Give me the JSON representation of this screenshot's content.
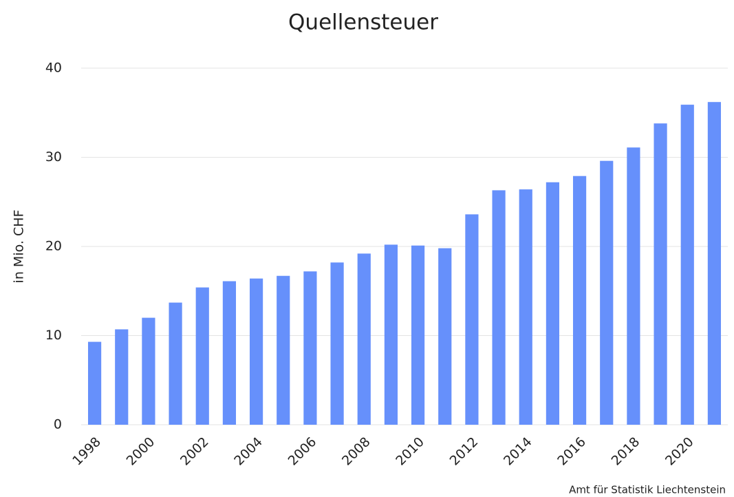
{
  "chart_data": {
    "type": "bar",
    "title": "Quellensteuer",
    "y_label": "in Mio. CHF",
    "source": "Amt für Statistik Liechtenstein",
    "categories": [
      "1998",
      null,
      "2000",
      null,
      "2002",
      null,
      "2004",
      null,
      "2006",
      null,
      "2008",
      null,
      "2010",
      null,
      "2012",
      null,
      "2014",
      null,
      "2016",
      null,
      "2018",
      null,
      "2020",
      null
    ],
    "values": [
      9.3,
      10.7,
      12.0,
      13.7,
      15.4,
      16.1,
      16.4,
      16.7,
      17.2,
      18.2,
      19.2,
      20.2,
      20.1,
      19.8,
      23.6,
      26.3,
      26.4,
      27.2,
      27.9,
      29.6,
      31.1,
      33.8,
      35.9,
      36.2
    ],
    "color": "#6690fb",
    "ylim": [
      0,
      40
    ],
    "yticks": [
      0,
      10,
      20,
      30,
      40
    ],
    "grid": true
  }
}
